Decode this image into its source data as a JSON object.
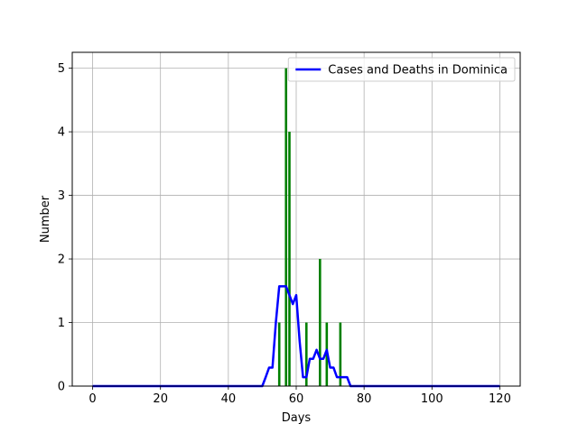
{
  "chart_data": {
    "type": "bar",
    "title": "",
    "xlabel": "Days",
    "ylabel": "Number",
    "xlim": [
      -6,
      126
    ],
    "ylim": [
      0,
      5.25
    ],
    "xticks": [
      0,
      20,
      40,
      60,
      80,
      100,
      120
    ],
    "yticks": [
      0,
      1,
      2,
      3,
      4,
      5
    ],
    "grid": true,
    "legend": {
      "placement": "top-right"
    },
    "colors": {
      "line": "#0000ff",
      "bars": "#008000",
      "grid": "#b0b0b0"
    },
    "bars": {
      "x": [
        55,
        57,
        58,
        63,
        67,
        69,
        73
      ],
      "values": [
        1,
        5,
        4,
        1,
        2,
        1,
        1
      ]
    },
    "series": [
      {
        "name": "Cases and Deaths in Dominica",
        "type": "line",
        "x": [
          0,
          50,
          51,
          52,
          53,
          54,
          55,
          56,
          57,
          58,
          59,
          60,
          61,
          62,
          63,
          64,
          65,
          66,
          67,
          68,
          69,
          70,
          71,
          72,
          73,
          74,
          75,
          76,
          77,
          120
        ],
        "values": [
          0,
          0,
          0.14,
          0.29,
          0.29,
          1.0,
          1.57,
          1.57,
          1.57,
          1.43,
          1.29,
          1.43,
          0.71,
          0.14,
          0.14,
          0.43,
          0.43,
          0.57,
          0.43,
          0.43,
          0.57,
          0.29,
          0.29,
          0.14,
          0.14,
          0.14,
          0.14,
          0.0,
          0.0,
          0
        ]
      }
    ]
  }
}
